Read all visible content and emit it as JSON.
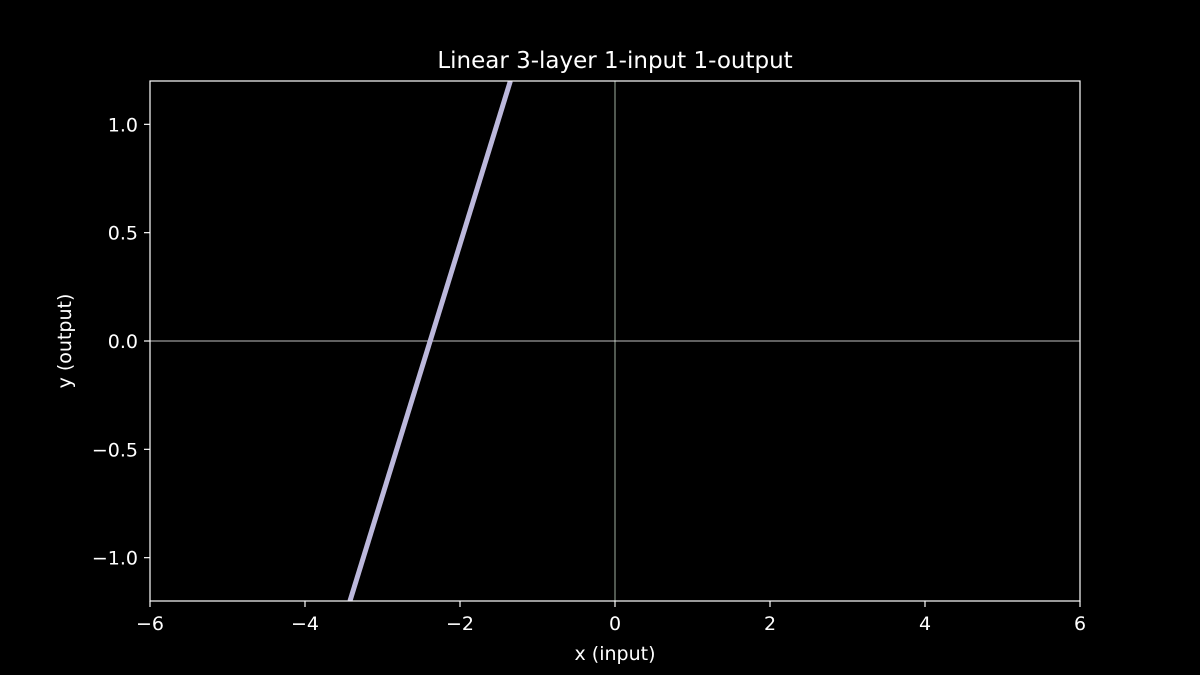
{
  "chart_data": {
    "type": "line",
    "title": "Linear 3-layer 1-input 1-output",
    "xlabel": "x (input)",
    "ylabel": "y (output)",
    "xlim": [
      -6,
      6
    ],
    "ylim": [
      -1.2,
      1.2
    ],
    "xticks": [
      -6,
      -4,
      -2,
      0,
      2,
      4,
      6
    ],
    "yticks": [
      -1.0,
      -0.5,
      0.0,
      0.5,
      1.0
    ],
    "xtick_labels": [
      "−6",
      "−4",
      "−2",
      "0",
      "2",
      "4",
      "6"
    ],
    "ytick_labels": [
      "−1.0",
      "−0.5",
      "0.0",
      "0.5",
      "1.0"
    ],
    "series": [
      {
        "x": [
          -3.42,
          -1.35
        ],
        "y": [
          -1.2,
          1.2
        ],
        "color": "#bcb8dc"
      }
    ],
    "zero_lines": true,
    "grid": false,
    "colors": {
      "background": "#000000",
      "foreground": "#ffffff",
      "zero_line_x": "#c8dcc8",
      "zero_line_y": "#ffffff"
    }
  }
}
